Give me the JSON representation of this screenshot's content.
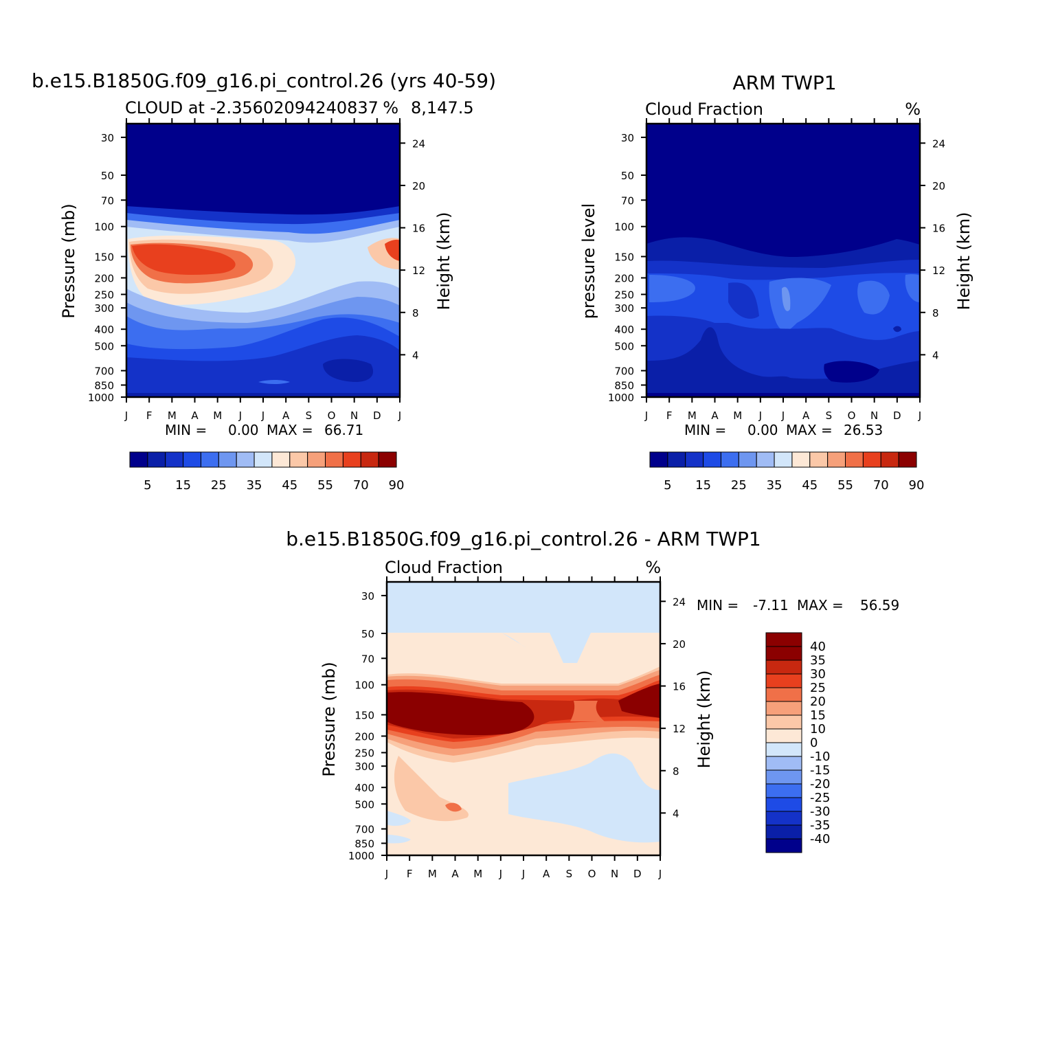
{
  "palette": [
    "#00008b",
    "#0a1fa8",
    "#1432c8",
    "#1e4be6",
    "#3c6ef0",
    "#6e96f0",
    "#a0bcf5",
    "#d2e6fa",
    "#fde8d6",
    "#fbc8a8",
    "#f6a07a",
    "#f07048",
    "#e8401e",
    "#c82810",
    "#8b0000"
  ],
  "months": [
    "J",
    "F",
    "M",
    "A",
    "M",
    "J",
    "J",
    "A",
    "S",
    "O",
    "N",
    "D",
    "J"
  ],
  "pressure_ticks": [
    "30",
    "50",
    "70",
    "100",
    "150",
    "200",
    "250",
    "300",
    "400",
    "500",
    "700",
    "850",
    "1000"
  ],
  "height_ticks": [
    "24",
    "20",
    "16",
    "12",
    "8",
    "4"
  ],
  "panel1": {
    "title": "b.e15.B1850G.f09_g16.pi_control.26 (yrs 40-59)",
    "subtitle_left": "CLOUD at -2.35602094240837",
    "subtitle_right": "8,147.5",
    "unit": "%",
    "ylabel": "Pressure (mb)",
    "y2label": "Height (km)",
    "stats": {
      "min_label": "MIN =",
      "min": "0.00",
      "max_label": "MAX =",
      "max": "66.71"
    },
    "colorbar_labels": [
      "5",
      "15",
      "25",
      "35",
      "45",
      "55",
      "70",
      "90"
    ]
  },
  "panel2": {
    "title": "ARM TWP1",
    "subtitle_left": "Cloud Fraction",
    "unit": "%",
    "ylabel": "pressure level",
    "y2label": "Height (km)",
    "stats": {
      "min_label": "MIN =",
      "min": "0.00",
      "max_label": "MAX =",
      "max": "26.53"
    },
    "colorbar_labels": [
      "5",
      "15",
      "25",
      "35",
      "45",
      "55",
      "70",
      "90"
    ]
  },
  "panel3": {
    "title": "b.e15.B1850G.f09_g16.pi_control.26 - ARM TWP1",
    "subtitle_left": "Cloud Fraction",
    "unit": "%",
    "ylabel": "Pressure (mb)",
    "y2label": "Height (km)",
    "stats": {
      "min_label": "MIN =",
      "min": "-7.11",
      "max_label": "MAX =",
      "max": "56.59"
    },
    "colorbar_labels": [
      "40",
      "35",
      "30",
      "25",
      "20",
      "15",
      "10",
      "0",
      "-10",
      "-15",
      "-20",
      "-25",
      "-30",
      "-35",
      "-40"
    ]
  },
  "chart_data": [
    {
      "type": "heatmap",
      "title": "b.e15.B1850G.f09_g16.pi_control.26 (yrs 40-59)",
      "subtitle": "CLOUD at -2.35602094240837 8,147.5",
      "x": [
        "J",
        "F",
        "M",
        "A",
        "M",
        "J",
        "J",
        "A",
        "S",
        "O",
        "N",
        "D",
        "J"
      ],
      "y": [
        30,
        50,
        70,
        100,
        150,
        200,
        250,
        300,
        400,
        500,
        700,
        850,
        1000
      ],
      "xlabel": "",
      "ylabel": "Pressure (mb)",
      "y2label": "Height (km)",
      "levels": [
        5,
        10,
        15,
        20,
        25,
        30,
        35,
        40,
        45,
        50,
        55,
        60,
        70,
        80,
        90
      ],
      "values": [
        [
          0,
          0,
          0,
          0,
          0,
          0,
          0,
          0,
          0,
          0,
          0,
          0,
          0
        ],
        [
          0,
          0,
          0,
          0,
          0,
          0,
          0,
          0,
          0,
          0,
          0,
          0,
          0
        ],
        [
          1,
          1,
          1,
          1,
          1,
          1,
          1,
          1,
          1,
          1,
          1,
          1,
          1
        ],
        [
          20,
          18,
          15,
          13,
          10,
          8,
          7,
          8,
          8,
          9,
          10,
          14,
          20
        ],
        [
          60,
          64,
          66,
          60,
          58,
          45,
          40,
          38,
          35,
          30,
          42,
          50,
          58
        ],
        [
          55,
          60,
          60,
          52,
          45,
          40,
          35,
          30,
          28,
          25,
          22,
          24,
          28
        ],
        [
          32,
          40,
          40,
          30,
          25,
          20,
          18,
          16,
          14,
          12,
          12,
          12,
          14
        ],
        [
          25,
          28,
          30,
          20,
          16,
          14,
          12,
          10,
          8,
          8,
          10,
          8,
          10
        ],
        [
          18,
          15,
          12,
          10,
          8,
          8,
          6,
          5,
          5,
          5,
          7,
          6,
          8
        ],
        [
          10,
          12,
          10,
          8,
          8,
          8,
          6,
          5,
          4,
          4,
          5,
          5,
          6
        ],
        [
          7,
          6,
          6,
          6,
          5,
          5,
          5,
          4,
          4,
          3,
          3,
          4,
          5
        ],
        [
          5,
          5,
          5,
          5,
          5,
          4,
          4,
          4,
          4,
          4,
          4,
          4,
          5
        ],
        [
          3,
          3,
          3,
          3,
          3,
          3,
          3,
          3,
          3,
          3,
          3,
          3,
          3
        ]
      ],
      "stats": {
        "min": 0.0,
        "max": 66.71
      }
    },
    {
      "type": "heatmap",
      "title": "ARM TWP1",
      "subtitle": "Cloud Fraction",
      "x": [
        "J",
        "F",
        "M",
        "A",
        "M",
        "J",
        "J",
        "A",
        "S",
        "O",
        "N",
        "D",
        "J"
      ],
      "y": [
        30,
        50,
        70,
        100,
        150,
        200,
        250,
        300,
        400,
        500,
        700,
        850,
        1000
      ],
      "xlabel": "",
      "ylabel": "pressure level",
      "y2label": "Height (km)",
      "levels": [
        5,
        10,
        15,
        20,
        25,
        30,
        35,
        40,
        45,
        50,
        55,
        60,
        70,
        80,
        90
      ],
      "values": [
        [
          0,
          0,
          0,
          0,
          0,
          0,
          0,
          0,
          0,
          0,
          0,
          0,
          0
        ],
        [
          0,
          0,
          0,
          0,
          0,
          0,
          0,
          0,
          0,
          0,
          0,
          0,
          0
        ],
        [
          0,
          0,
          0,
          0,
          0,
          0,
          0,
          0,
          0,
          0,
          0,
          0,
          0
        ],
        [
          1,
          1,
          1,
          1,
          1,
          1,
          1,
          1,
          1,
          1,
          1,
          1,
          1
        ],
        [
          10,
          8,
          7,
          7,
          6,
          6,
          6,
          6,
          6,
          6,
          7,
          8,
          10
        ],
        [
          22,
          22,
          18,
          16,
          15,
          15,
          16,
          15,
          15,
          15,
          16,
          18,
          20
        ],
        [
          20,
          20,
          18,
          15,
          15,
          16,
          24,
          16,
          15,
          15,
          20,
          18,
          18
        ],
        [
          17,
          17,
          16,
          15,
          14,
          16,
          22,
          16,
          15,
          14,
          16,
          16,
          16
        ],
        [
          15,
          15,
          14,
          10,
          14,
          15,
          16,
          14,
          14,
          14,
          14,
          15,
          15
        ],
        [
          14,
          14,
          14,
          8,
          14,
          14,
          15,
          14,
          14,
          14,
          14,
          14,
          14
        ],
        [
          12,
          12,
          9,
          8,
          10,
          11,
          12,
          12,
          9,
          9,
          11,
          12,
          12
        ],
        [
          10,
          10,
          8,
          8,
          9,
          10,
          10,
          10,
          9,
          9,
          10,
          10,
          10
        ],
        [
          5,
          5,
          5,
          5,
          5,
          5,
          5,
          5,
          5,
          5,
          5,
          5,
          5
        ]
      ],
      "stats": {
        "min": 0.0,
        "max": 26.53
      }
    },
    {
      "type": "heatmap",
      "title": "b.e15.B1850G.f09_g16.pi_control.26 - ARM TWP1",
      "subtitle": "Cloud Fraction",
      "x": [
        "J",
        "F",
        "M",
        "A",
        "M",
        "J",
        "J",
        "A",
        "S",
        "O",
        "N",
        "D",
        "J"
      ],
      "y": [
        30,
        50,
        70,
        100,
        150,
        200,
        250,
        300,
        400,
        500,
        700,
        850,
        1000
      ],
      "xlabel": "",
      "ylabel": "Pressure (mb)",
      "y2label": "Height (km)",
      "levels": [
        -40,
        -35,
        -30,
        -25,
        -20,
        -15,
        -10,
        0,
        10,
        15,
        20,
        25,
        30,
        35,
        40
      ],
      "values": [
        [
          -2,
          -2,
          -2,
          -2,
          -2,
          -2,
          -2,
          -2,
          -2,
          -2,
          -2,
          -2,
          -2
        ],
        [
          2,
          2,
          2,
          2,
          2,
          2,
          2,
          -2,
          -2,
          -2,
          2,
          2,
          2
        ],
        [
          3,
          3,
          3,
          3,
          3,
          3,
          2,
          2,
          -2,
          -2,
          2,
          3,
          3
        ],
        [
          20,
          18,
          15,
          13,
          10,
          8,
          7,
          8,
          8,
          9,
          10,
          14,
          20
        ],
        [
          50,
          56,
          56,
          52,
          50,
          42,
          34,
          32,
          30,
          24,
          34,
          42,
          48
        ],
        [
          33,
          38,
          40,
          36,
          30,
          25,
          20,
          15,
          13,
          10,
          8,
          6,
          8
        ],
        [
          14,
          20,
          25,
          18,
          14,
          8,
          3,
          3,
          2,
          2,
          2,
          2,
          2
        ],
        [
          8,
          13,
          15,
          8,
          5,
          3,
          2,
          2,
          2,
          2,
          2,
          2,
          2
        ],
        [
          5,
          5,
          5,
          5,
          5,
          2,
          2,
          -2,
          -2,
          -2,
          -2,
          2,
          2
        ],
        [
          2,
          5,
          5,
          5,
          2,
          2,
          2,
          -2,
          -2,
          -2,
          -2,
          2,
          2
        ],
        [
          -2,
          2,
          2,
          2,
          2,
          2,
          2,
          2,
          -2,
          -2,
          -2,
          -2,
          -2
        ],
        [
          2,
          2,
          2,
          2,
          2,
          2,
          2,
          2,
          2,
          2,
          2,
          -2,
          -2
        ],
        [
          -2,
          2,
          2,
          2,
          2,
          2,
          2,
          2,
          2,
          2,
          2,
          2,
          2
        ]
      ],
      "stats": {
        "min": -7.11,
        "max": 56.59
      }
    }
  ]
}
